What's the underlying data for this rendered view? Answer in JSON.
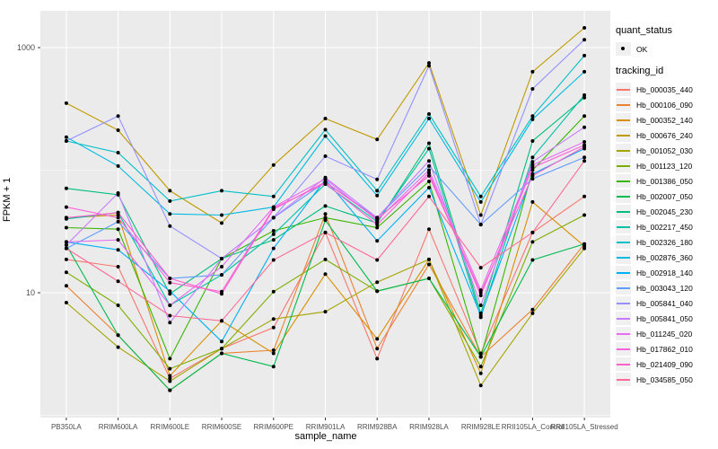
{
  "chart_data": {
    "type": "line",
    "title": "",
    "xlabel": "sample_name",
    "ylabel": "FPKM + 1",
    "y_scale": "log10",
    "y_tick_labels": [
      "10",
      "1000"
    ],
    "y_ticks": [
      10,
      1000
    ],
    "y_minor_ticks": [
      1,
      100
    ],
    "grid": true,
    "panel_bg": "#EBEBEB",
    "grid_color": "#FFFFFF",
    "point_color": "#000000",
    "tick_label_color": "#4D4D4D",
    "categories": [
      "PB350LA",
      "RRIM600LA",
      "RRIM600LE",
      "RRIM600SE",
      "RRIM600PE",
      "RRIM901LA",
      "RRIM928BA",
      "RRIM928LA",
      "RRIM928LE",
      "RRII105LA_Control",
      "RRII105LA_Stressed"
    ],
    "series": [
      {
        "name": "Hb_000035_440",
        "color": "#F8766D",
        "values": [
          18.7,
          16.3,
          2.0,
          3.5,
          5.2,
          31,
          2.9,
          33,
          3.2,
          31,
          61
        ]
      },
      {
        "name": "Hb_000106_090",
        "color": "#EA8331",
        "values": [
          11.4,
          4.5,
          1.6,
          3.2,
          3.4,
          44,
          3.5,
          17,
          3.0,
          7.3,
          25
        ]
      },
      {
        "name": "Hb_000352_140",
        "color": "#D89000",
        "values": [
          41,
          43,
          2.1,
          5.9,
          3.2,
          14.2,
          4.2,
          18.7,
          2.2,
          55,
          24
        ]
      },
      {
        "name": "Hb_000676_240",
        "color": "#C09B00",
        "values": [
          352,
          212,
          68,
          37,
          110,
          264,
          178,
          750,
          43,
          635,
          1450
        ]
      },
      {
        "name": "Hb_001052_030",
        "color": "#A3A500",
        "values": [
          8.3,
          3.6,
          1.9,
          3.5,
          6.1,
          7.0,
          12.2,
          18.7,
          1.75,
          6.8,
          23
        ]
      },
      {
        "name": "Hb_001123_120",
        "color": "#7CAE00",
        "values": [
          14.7,
          7.9,
          2.4,
          3.5,
          10.2,
          18.7,
          10.3,
          13.1,
          2.5,
          26,
          43
        ]
      },
      {
        "name": "Hb_001386_050",
        "color": "#39B600",
        "values": [
          34,
          33,
          2.9,
          19,
          32,
          41,
          34,
          81,
          3.0,
          100,
          276
        ]
      },
      {
        "name": "Hb_002007_050",
        "color": "#00BB4E",
        "values": [
          24.5,
          4.5,
          1.6,
          3.2,
          2.5,
          39,
          10.3,
          13.1,
          3.0,
          18.5,
          25
        ]
      },
      {
        "name": "Hb_002045_230",
        "color": "#00BF7D",
        "values": [
          71,
          63,
          9.8,
          19,
          27,
          51,
          37,
          166,
          6.8,
          173,
          390
        ]
      },
      {
        "name": "Hb_002217_450",
        "color": "#00C1A3",
        "values": [
          40,
          45,
          7.9,
          14,
          30,
          77,
          38,
          150,
          6.3,
          127,
          410
        ]
      },
      {
        "name": "Hb_002326_180",
        "color": "#00BFC4",
        "values": [
          173,
          139,
          56,
          68,
          61,
          214,
          68,
          287,
          61,
          276,
          860
        ]
      },
      {
        "name": "Hb_002876_360",
        "color": "#00BAE0",
        "values": [
          186,
          108,
          44,
          43,
          50,
          190,
          62,
          264,
          55,
          260,
          635
        ]
      },
      {
        "name": "Hb_002918_140",
        "color": "#00B0F6",
        "values": [
          26,
          22.4,
          10.3,
          4.0,
          23,
          84,
          26.5,
          72,
          6.5,
          93,
          150
        ]
      },
      {
        "name": "Hb_003043_120",
        "color": "#619CFF",
        "values": [
          23,
          38,
          13.1,
          14,
          41,
          80,
          41,
          108,
          36,
          85,
          127
        ]
      },
      {
        "name": "Hb_005841_040",
        "color": "#9590FF",
        "values": [
          173,
          276,
          35,
          19,
          41,
          130,
          84,
          710,
          36,
          460,
          1160
        ]
      },
      {
        "name": "Hb_005841_050",
        "color": "#C77CFF",
        "values": [
          24.5,
          65,
          5.7,
          19,
          41,
          87,
          41,
          119,
          7.9,
          117,
          224
        ]
      },
      {
        "name": "Hb_011245_020",
        "color": "#E76BF3",
        "values": [
          26,
          27,
          7.9,
          16.3,
          50,
          85,
          39,
          100,
          10.5,
          110,
          170
        ]
      },
      {
        "name": "Hb_017862_010",
        "color": "#FA62DB",
        "values": [
          50,
          41,
          12.1,
          10.2,
          49,
          78,
          36,
          95,
          9.5,
          105,
          160
        ]
      },
      {
        "name": "Hb_021409_090",
        "color": "#FF61CC",
        "values": [
          41,
          45,
          13.1,
          9.8,
          48,
          80,
          40,
          90,
          10,
          90,
          155
        ]
      },
      {
        "name": "Hb_034585_050",
        "color": "#FF6A98",
        "values": [
          23,
          12.4,
          6.5,
          5.9,
          18.5,
          31,
          18.5,
          61,
          16,
          31,
          119
        ]
      }
    ]
  },
  "legend": {
    "quant_title": "quant_status",
    "quant_items": [
      {
        "label": "OK"
      }
    ],
    "tracking_title": "tracking_id"
  }
}
